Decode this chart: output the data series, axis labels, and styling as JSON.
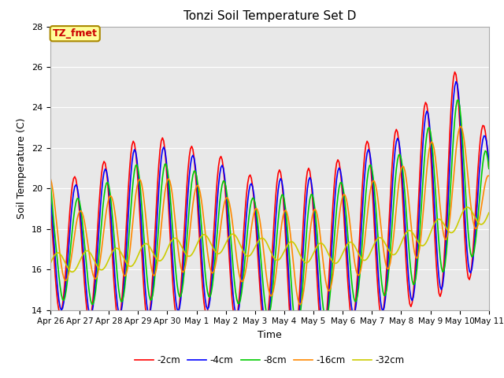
{
  "title": "Tonzi Soil Temperature Set D",
  "xlabel": "Time",
  "ylabel": "Soil Temperature (C)",
  "ylim": [
    14,
    28
  ],
  "xlim_days": 15,
  "background_color": "#ffffff",
  "plot_bg_color": "#e8e8e8",
  "tick_labels": [
    "Apr 26",
    "Apr 27",
    "Apr 28",
    "Apr 29",
    "Apr 30",
    "May 1",
    "May 2",
    "May 3",
    "May 4",
    "May 5",
    "May 6",
    "May 7",
    "May 8",
    "May 9",
    "May 10",
    "May 11"
  ],
  "legend_labels": [
    "-2cm",
    "-4cm",
    "-8cm",
    "-16cm",
    "-32cm"
  ],
  "legend_colors": [
    "#ff0000",
    "#0000ff",
    "#00cc00",
    "#ff8800",
    "#cccc00"
  ],
  "annotation_text": "TZ_fmet",
  "annotation_color": "#cc0000",
  "annotation_bg": "#ffff99",
  "annotation_border": "#aa8800",
  "grid_color": "#ffffff",
  "line_width": 1.2
}
